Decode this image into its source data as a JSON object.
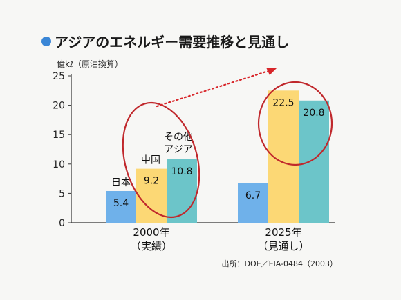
{
  "chart_data": {
    "type": "bar",
    "title": "アジアのエネルギー需要推移と見通し",
    "ylabel": "億kℓ（原油換算）",
    "ylim": [
      0,
      25
    ],
    "yticks": [
      0,
      5,
      10,
      15,
      20,
      25
    ],
    "categories": [
      {
        "line1": "2000年",
        "line2": "（実績）"
      },
      {
        "line1": "2025年",
        "line2": "（見通し）"
      }
    ],
    "series": [
      {
        "name": "日本",
        "values": [
          5.4,
          6.7
        ],
        "color": "#6fb1ea"
      },
      {
        "name": "中国",
        "values": [
          9.2,
          22.5
        ],
        "color": "#fcd875"
      },
      {
        "name": "その他アジア",
        "name_lines": [
          "その他",
          "アジア"
        ],
        "values": [
          10.8,
          20.8
        ],
        "color": "#6cc5c9"
      }
    ],
    "value_labels": [
      [
        "5.4",
        "9.2",
        "10.8"
      ],
      [
        "6.7",
        "22.5",
        "20.8"
      ]
    ],
    "source": "出所：DOE／EIA-0484（2003）",
    "colors": {
      "axis": "#333333",
      "circle": "#c0282c",
      "arrow": "#d8262a",
      "title_bullet": "#3a86d6"
    }
  }
}
